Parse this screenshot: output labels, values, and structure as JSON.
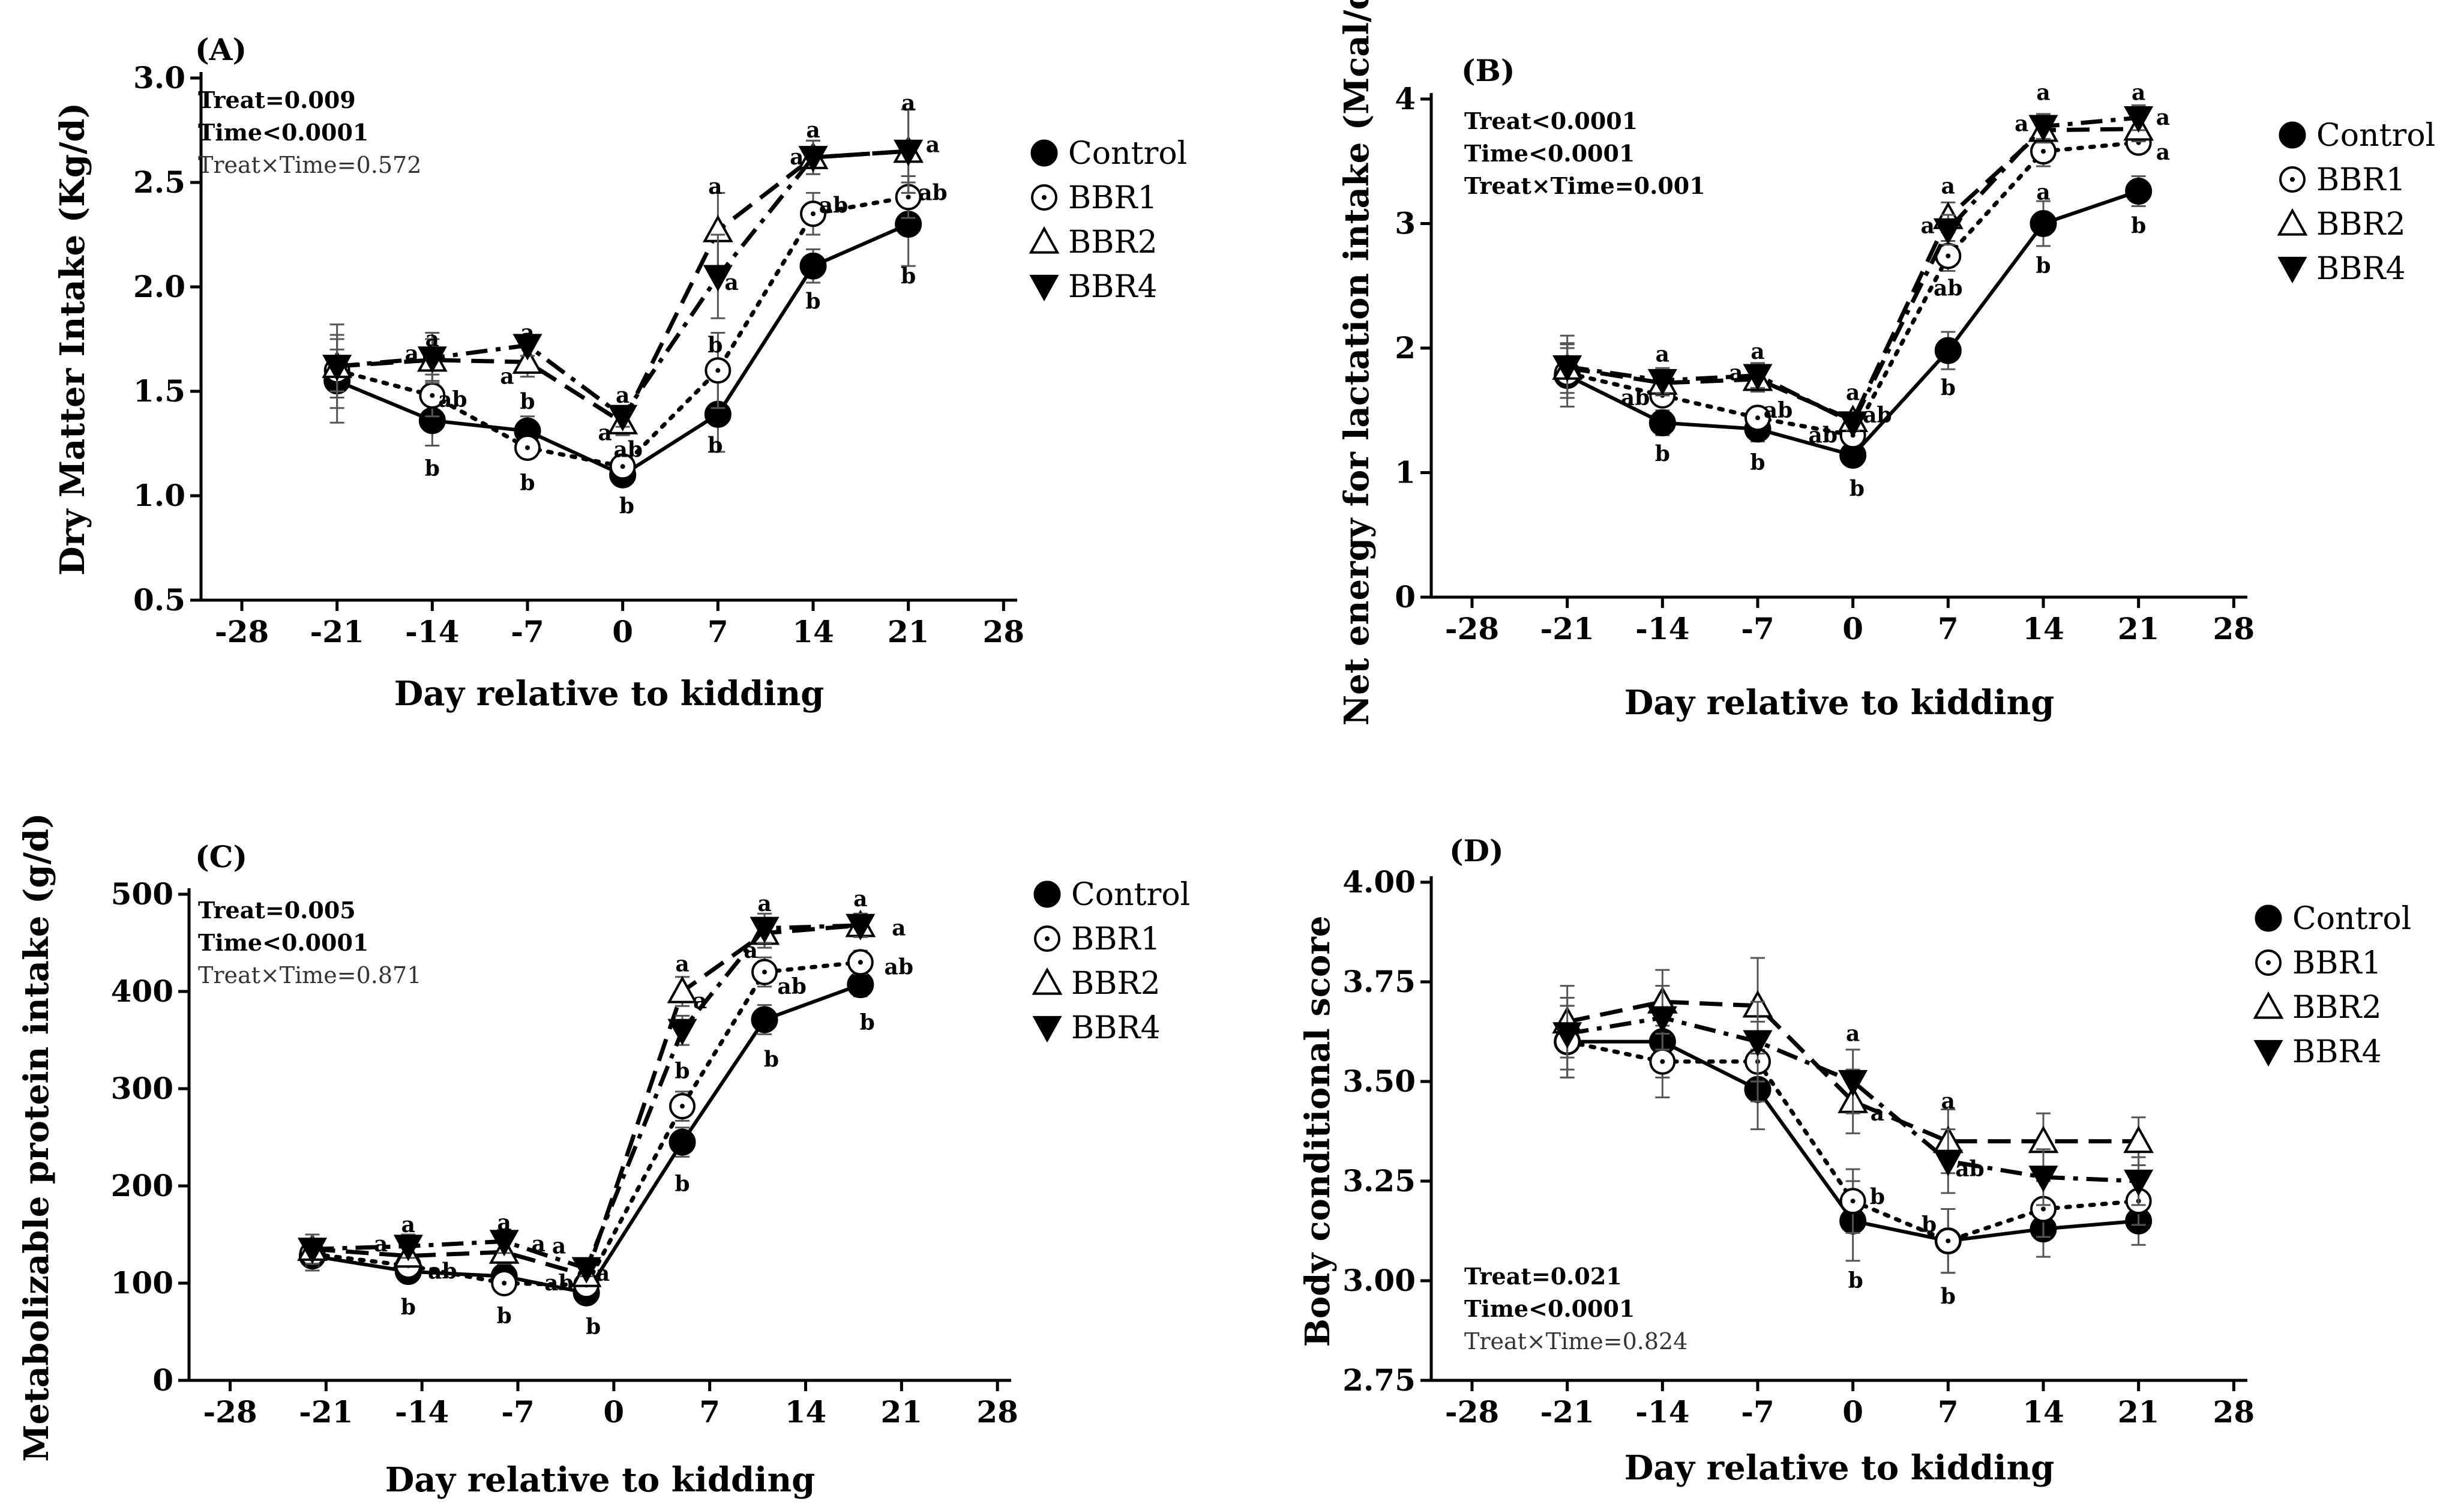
{
  "chart_data": [
    {
      "type": "line",
      "panel": "(A)",
      "title": "",
      "xlabel": "Day relative to kidding",
      "ylabel": "Dry Matter Intake (Kg/d)",
      "xlim": [
        -31,
        29
      ],
      "xticks": [
        -28,
        -21,
        -14,
        -7,
        0,
        7,
        14,
        21,
        28
      ],
      "xtick_labels": [
        "-28",
        "-21",
        "-14",
        "-7",
        "0",
        "7",
        "14",
        "21",
        "28"
      ],
      "ylim": [
        0.5,
        3.0
      ],
      "yticks": [
        0.5,
        1.0,
        1.5,
        2.0,
        2.5,
        3.0
      ],
      "ytick_labels": [
        "0.5",
        "1.0",
        "1.5",
        "2.0",
        "2.5",
        "3.0"
      ],
      "stats": [
        {
          "text": "Treat=0.009",
          "bold": true
        },
        {
          "text": "Time<0.0001",
          "bold": true
        },
        {
          "text": "Treat×Time=0.572",
          "bold": false
        }
      ],
      "legend_position": "right",
      "series": [
        {
          "name": "Control",
          "style": "solid",
          "marker": "filled-circle",
          "x": [
            -21,
            -14,
            -7,
            0,
            7,
            14,
            21
          ],
          "y": [
            1.55,
            1.36,
            1.31,
            1.1,
            1.39,
            2.1,
            2.3
          ],
          "err": [
            0.2,
            0.12,
            0.07,
            0.05,
            0.18,
            0.08,
            0.2
          ]
        },
        {
          "name": "BBR1",
          "style": "dotted",
          "marker": "dot-circle",
          "x": [
            -21,
            -14,
            -7,
            0,
            7,
            14,
            21
          ],
          "y": [
            1.6,
            1.48,
            1.23,
            1.14,
            1.6,
            2.35,
            2.43
          ],
          "err": [
            0.1,
            0.1,
            0.05,
            0.05,
            0.18,
            0.1,
            0.1
          ]
        },
        {
          "name": "BBR2",
          "style": "dashed",
          "marker": "open-triangle-up",
          "x": [
            -21,
            -14,
            -7,
            0,
            7,
            14,
            21
          ],
          "y": [
            1.62,
            1.65,
            1.64,
            1.35,
            2.27,
            2.62,
            2.65
          ],
          "err": [
            0.15,
            0.1,
            0.07,
            0.06,
            0.18,
            0.08,
            0.2
          ]
        },
        {
          "name": "BBR4",
          "style": "dashdot",
          "marker": "filled-triangle-down",
          "x": [
            -21,
            -14,
            -7,
            0,
            7,
            14,
            21
          ],
          "y": [
            1.62,
            1.66,
            1.72,
            1.38,
            2.05,
            2.62,
            2.65
          ],
          "err": [
            0.2,
            0.12,
            0.05,
            0.05,
            0.2,
            0.08,
            0.2
          ]
        }
      ],
      "annotations": [
        {
          "x": -14,
          "y": 1.75,
          "text": "a"
        },
        {
          "x": -15.5,
          "y": 1.68,
          "text": "a"
        },
        {
          "x": -12.5,
          "y": 1.46,
          "text": "ab"
        },
        {
          "x": -14,
          "y": 1.13,
          "text": "b"
        },
        {
          "x": -7,
          "y": 1.78,
          "text": "a"
        },
        {
          "x": -8.5,
          "y": 1.57,
          "text": "a"
        },
        {
          "x": -7,
          "y": 1.45,
          "text": "b"
        },
        {
          "x": -7,
          "y": 1.06,
          "text": "b"
        },
        {
          "x": 0,
          "y": 1.48,
          "text": "a"
        },
        {
          "x": -1.3,
          "y": 1.3,
          "text": "a"
        },
        {
          "x": 0.4,
          "y": 1.22,
          "text": "ab"
        },
        {
          "x": 0.3,
          "y": 0.95,
          "text": "b"
        },
        {
          "x": 6.8,
          "y": 2.48,
          "text": "a"
        },
        {
          "x": 8,
          "y": 2.02,
          "text": "a"
        },
        {
          "x": 6.8,
          "y": 1.72,
          "text": "b"
        },
        {
          "x": 6.8,
          "y": 1.24,
          "text": "b"
        },
        {
          "x": 14,
          "y": 2.75,
          "text": "a"
        },
        {
          "x": 12.8,
          "y": 2.62,
          "text": "a"
        },
        {
          "x": 15.5,
          "y": 2.39,
          "text": "ab"
        },
        {
          "x": 14,
          "y": 1.93,
          "text": "b"
        },
        {
          "x": 21,
          "y": 2.88,
          "text": "a"
        },
        {
          "x": 22.8,
          "y": 2.68,
          "text": "a"
        },
        {
          "x": 22.8,
          "y": 2.45,
          "text": "ab"
        },
        {
          "x": 21,
          "y": 2.05,
          "text": "b"
        }
      ]
    },
    {
      "type": "line",
      "panel": "(B)",
      "title": "",
      "xlabel": "Day relative to kidding",
      "ylabel": "Net energy for lactation intake (Mcal/d)",
      "xlim": [
        -31,
        29
      ],
      "xticks": [
        -28,
        -21,
        -14,
        -7,
        0,
        7,
        14,
        21,
        28
      ],
      "xtick_labels": [
        "-28",
        "-21",
        "-14",
        "-7",
        "0",
        "7",
        "14",
        "21",
        "28"
      ],
      "ylim": [
        0,
        4
      ],
      "yticks": [
        0,
        1,
        2,
        3,
        4
      ],
      "ytick_labels": [
        "0",
        "1",
        "2",
        "3",
        "4"
      ],
      "stats": [
        {
          "text": "Treat<0.0001",
          "bold": true
        },
        {
          "text": "Time<0.0001",
          "bold": true
        },
        {
          "text": "Treat×Time=0.001",
          "bold": true
        }
      ],
      "legend_position": "right",
      "series": [
        {
          "name": "Control",
          "style": "solid",
          "marker": "filled-circle",
          "x": [
            -21,
            -14,
            -7,
            0,
            7,
            14,
            21
          ],
          "y": [
            1.78,
            1.4,
            1.35,
            1.14,
            1.98,
            3.0,
            3.26
          ],
          "err": [
            0.25,
            0.1,
            0.1,
            0.06,
            0.15,
            0.18,
            0.12
          ]
        },
        {
          "name": "BBR1",
          "style": "dotted",
          "marker": "dot-circle",
          "x": [
            -21,
            -14,
            -7,
            0,
            7,
            14,
            21
          ],
          "y": [
            1.8,
            1.62,
            1.44,
            1.3,
            2.74,
            3.58,
            3.65
          ],
          "err": [
            0.2,
            0.08,
            0.08,
            0.06,
            0.12,
            0.12,
            0.08
          ]
        },
        {
          "name": "BBR2",
          "style": "dashed",
          "marker": "open-triangle-up",
          "x": [
            -21,
            -14,
            -7,
            0,
            7,
            14,
            21
          ],
          "y": [
            1.84,
            1.72,
            1.75,
            1.42,
            3.05,
            3.75,
            3.76
          ],
          "err": [
            0.2,
            0.1,
            0.1,
            0.06,
            0.12,
            0.1,
            0.1
          ]
        },
        {
          "name": "BBR4",
          "style": "dashdot",
          "marker": "filled-triangle-down",
          "x": [
            -21,
            -14,
            -7,
            0,
            7,
            14,
            21
          ],
          "y": [
            1.85,
            1.74,
            1.78,
            1.4,
            2.95,
            3.78,
            3.85
          ],
          "err": [
            0.25,
            0.1,
            0.1,
            0.06,
            0.12,
            0.1,
            0.1
          ]
        }
      ],
      "annotations": [
        {
          "x": -14,
          "y": 1.95,
          "text": "a"
        },
        {
          "x": -16,
          "y": 1.6,
          "text": "ab"
        },
        {
          "x": -14,
          "y": 1.15,
          "text": "b"
        },
        {
          "x": -7,
          "y": 1.97,
          "text": "a"
        },
        {
          "x": -8.6,
          "y": 1.8,
          "text": "a"
        },
        {
          "x": -5.5,
          "y": 1.5,
          "text": "ab"
        },
        {
          "x": -7,
          "y": 1.08,
          "text": "b"
        },
        {
          "x": 0,
          "y": 1.64,
          "text": "a"
        },
        {
          "x": -2.2,
          "y": 1.3,
          "text": "ab"
        },
        {
          "x": 1.8,
          "y": 1.46,
          "text": "ab"
        },
        {
          "x": 0.3,
          "y": 0.87,
          "text": "b"
        },
        {
          "x": 7,
          "y": 3.3,
          "text": "a"
        },
        {
          "x": 5.5,
          "y": 2.98,
          "text": "a"
        },
        {
          "x": 7,
          "y": 2.48,
          "text": "ab"
        },
        {
          "x": 7,
          "y": 1.68,
          "text": "b"
        },
        {
          "x": 14,
          "y": 4.05,
          "text": "a"
        },
        {
          "x": 12.4,
          "y": 3.8,
          "text": "a"
        },
        {
          "x": 14,
          "y": 3.25,
          "text": "a"
        },
        {
          "x": 14,
          "y": 2.66,
          "text": "b"
        },
        {
          "x": 21,
          "y": 4.05,
          "text": "a"
        },
        {
          "x": 22.8,
          "y": 3.85,
          "text": "a"
        },
        {
          "x": 22.8,
          "y": 3.57,
          "text": "a"
        },
        {
          "x": 21,
          "y": 2.98,
          "text": "b"
        }
      ]
    },
    {
      "type": "line",
      "panel": "(C)",
      "title": "",
      "xlabel": "Day relative to kidding",
      "ylabel": "Metabolizable protein intake (g/d)",
      "xlim": [
        -31,
        29
      ],
      "xticks": [
        -28,
        -21,
        -14,
        -7,
        0,
        7,
        14,
        21,
        28
      ],
      "xtick_labels": [
        "-28",
        "-21",
        "-14",
        "-7",
        "0",
        "7",
        "14",
        "21",
        "28"
      ],
      "ylim": [
        0,
        500
      ],
      "yticks": [
        0,
        100,
        200,
        300,
        400,
        500
      ],
      "ytick_labels": [
        "0",
        "100",
        "200",
        "300",
        "400",
        "500"
      ],
      "stats": [
        {
          "text": "Treat=0.005",
          "bold": true
        },
        {
          "text": "Time<0.0001",
          "bold": true
        },
        {
          "text": "Treat×Time=0.871",
          "bold": false
        }
      ],
      "legend_position": "right",
      "series": [
        {
          "name": "Control",
          "style": "solid",
          "marker": "filled-circle",
          "x": [
            -22,
            -15,
            -8,
            -2,
            5,
            11,
            18
          ],
          "y": [
            128,
            112,
            107,
            90,
            245,
            371,
            407
          ],
          "err": [
            15,
            10,
            10,
            8,
            15,
            15,
            12
          ]
        },
        {
          "name": "BBR1",
          "style": "dotted",
          "marker": "dot-circle",
          "x": [
            -22,
            -15,
            -8,
            -2,
            5,
            11,
            18
          ],
          "y": [
            130,
            118,
            100,
            98,
            282,
            420,
            430
          ],
          "err": [
            12,
            10,
            10,
            8,
            15,
            15,
            12
          ]
        },
        {
          "name": "BBR2",
          "style": "dashed",
          "marker": "open-triangle-up",
          "x": [
            -22,
            -15,
            -8,
            -2,
            5,
            11,
            18
          ],
          "y": [
            135,
            128,
            132,
            108,
            400,
            460,
            468
          ],
          "err": [
            15,
            10,
            12,
            8,
            15,
            15,
            12
          ]
        },
        {
          "name": "BBR4",
          "style": "dashdot",
          "marker": "filled-triangle-down",
          "x": [
            -22,
            -15,
            -8,
            -2,
            5,
            11,
            18
          ],
          "y": [
            135,
            138,
            143,
            115,
            360,
            465,
            468
          ],
          "err": [
            15,
            12,
            12,
            8,
            15,
            15,
            12
          ]
        }
      ],
      "annotations": [
        {
          "x": -17,
          "y": 140,
          "text": "a"
        },
        {
          "x": -15,
          "y": 160,
          "text": "a"
        },
        {
          "x": -12.5,
          "y": 112,
          "text": "ab"
        },
        {
          "x": -15,
          "y": 75,
          "text": "b"
        },
        {
          "x": -8,
          "y": 162,
          "text": "a"
        },
        {
          "x": -5.5,
          "y": 140,
          "text": "a"
        },
        {
          "x": -8,
          "y": 66,
          "text": "b"
        },
        {
          "x": -4,
          "y": 138,
          "text": "a"
        },
        {
          "x": -4,
          "y": 100,
          "text": "ab"
        },
        {
          "x": -0.8,
          "y": 110,
          "text": "a"
        },
        {
          "x": -1.5,
          "y": 55,
          "text": "b"
        },
        {
          "x": 5,
          "y": 428,
          "text": "a"
        },
        {
          "x": 6.3,
          "y": 390,
          "text": "a"
        },
        {
          "x": 5,
          "y": 318,
          "text": "b"
        },
        {
          "x": 5,
          "y": 202,
          "text": "b"
        },
        {
          "x": 11,
          "y": 490,
          "text": "a"
        },
        {
          "x": 10,
          "y": 442,
          "text": "a"
        },
        {
          "x": 13,
          "y": 405,
          "text": "ab"
        },
        {
          "x": 11.5,
          "y": 330,
          "text": "b"
        },
        {
          "x": 18,
          "y": 495,
          "text": "a"
        },
        {
          "x": 20.8,
          "y": 465,
          "text": "a"
        },
        {
          "x": 20.8,
          "y": 425,
          "text": "ab"
        },
        {
          "x": 18.5,
          "y": 368,
          "text": "b"
        }
      ]
    },
    {
      "type": "line",
      "panel": "(D)",
      "title": "",
      "xlabel": "Day relative to kidding",
      "ylabel": "Body conditional score",
      "xlim": [
        -31,
        29
      ],
      "xticks": [
        -28,
        -21,
        -14,
        -7,
        0,
        7,
        14,
        21,
        28
      ],
      "xtick_labels": [
        "-28",
        "-21",
        "-14",
        "-7",
        "0",
        "7",
        "14",
        "21",
        "28"
      ],
      "ylim": [
        2.75,
        4.0
      ],
      "yticks": [
        2.75,
        3.0,
        3.25,
        3.5,
        3.75,
        4.0
      ],
      "ytick_labels": [
        "2.75",
        "3.00",
        "3.25",
        "3.50",
        "3.75",
        "4.00"
      ],
      "stats": [
        {
          "text": "Treat=0.021",
          "bold": true
        },
        {
          "text": "Time<0.0001",
          "bold": true
        },
        {
          "text": "Treat×Time=0.824",
          "bold": false
        }
      ],
      "legend_position": "right",
      "series": [
        {
          "name": "Control",
          "style": "solid",
          "marker": "filled-circle",
          "x": [
            -21,
            -14,
            -7,
            0,
            7,
            14,
            21
          ],
          "y": [
            3.6,
            3.6,
            3.48,
            3.15,
            3.1,
            3.13,
            3.15
          ],
          "err": [
            0.09,
            0.09,
            0.1,
            0.1,
            0.08,
            0.07,
            0.06
          ]
        },
        {
          "name": "BBR1",
          "style": "dotted",
          "marker": "dot-circle",
          "x": [
            -21,
            -14,
            -7,
            0,
            7,
            14,
            21
          ],
          "y": [
            3.6,
            3.55,
            3.55,
            3.2,
            3.1,
            3.18,
            3.2
          ],
          "err": [
            0.09,
            0.09,
            0.1,
            0.08,
            0.08,
            0.07,
            0.06
          ]
        },
        {
          "name": "BBR2",
          "style": "dashed",
          "marker": "open-triangle-up",
          "x": [
            -21,
            -14,
            -7,
            0,
            7,
            14,
            21
          ],
          "y": [
            3.65,
            3.7,
            3.69,
            3.45,
            3.35,
            3.35,
            3.35
          ],
          "err": [
            0.09,
            0.08,
            0.12,
            0.08,
            0.08,
            0.07,
            0.06
          ]
        },
        {
          "name": "BBR4",
          "style": "dashdot",
          "marker": "filled-triangle-down",
          "x": [
            -21,
            -14,
            -7,
            0,
            7,
            14,
            21
          ],
          "y": [
            3.62,
            3.66,
            3.6,
            3.5,
            3.3,
            3.26,
            3.25
          ],
          "err": [
            0.09,
            0.08,
            0.1,
            0.08,
            0.08,
            0.07,
            0.06
          ]
        }
      ],
      "annotations": [
        {
          "x": 0,
          "y": 3.62,
          "text": "a"
        },
        {
          "x": 1.8,
          "y": 3.42,
          "text": "a"
        },
        {
          "x": 1.8,
          "y": 3.21,
          "text": "b"
        },
        {
          "x": 0.2,
          "y": 3.0,
          "text": "b"
        },
        {
          "x": 7,
          "y": 3.45,
          "text": "a"
        },
        {
          "x": 8.6,
          "y": 3.28,
          "text": "ab"
        },
        {
          "x": 5.6,
          "y": 3.14,
          "text": "b"
        },
        {
          "x": 7,
          "y": 2.96,
          "text": "b"
        }
      ]
    }
  ]
}
